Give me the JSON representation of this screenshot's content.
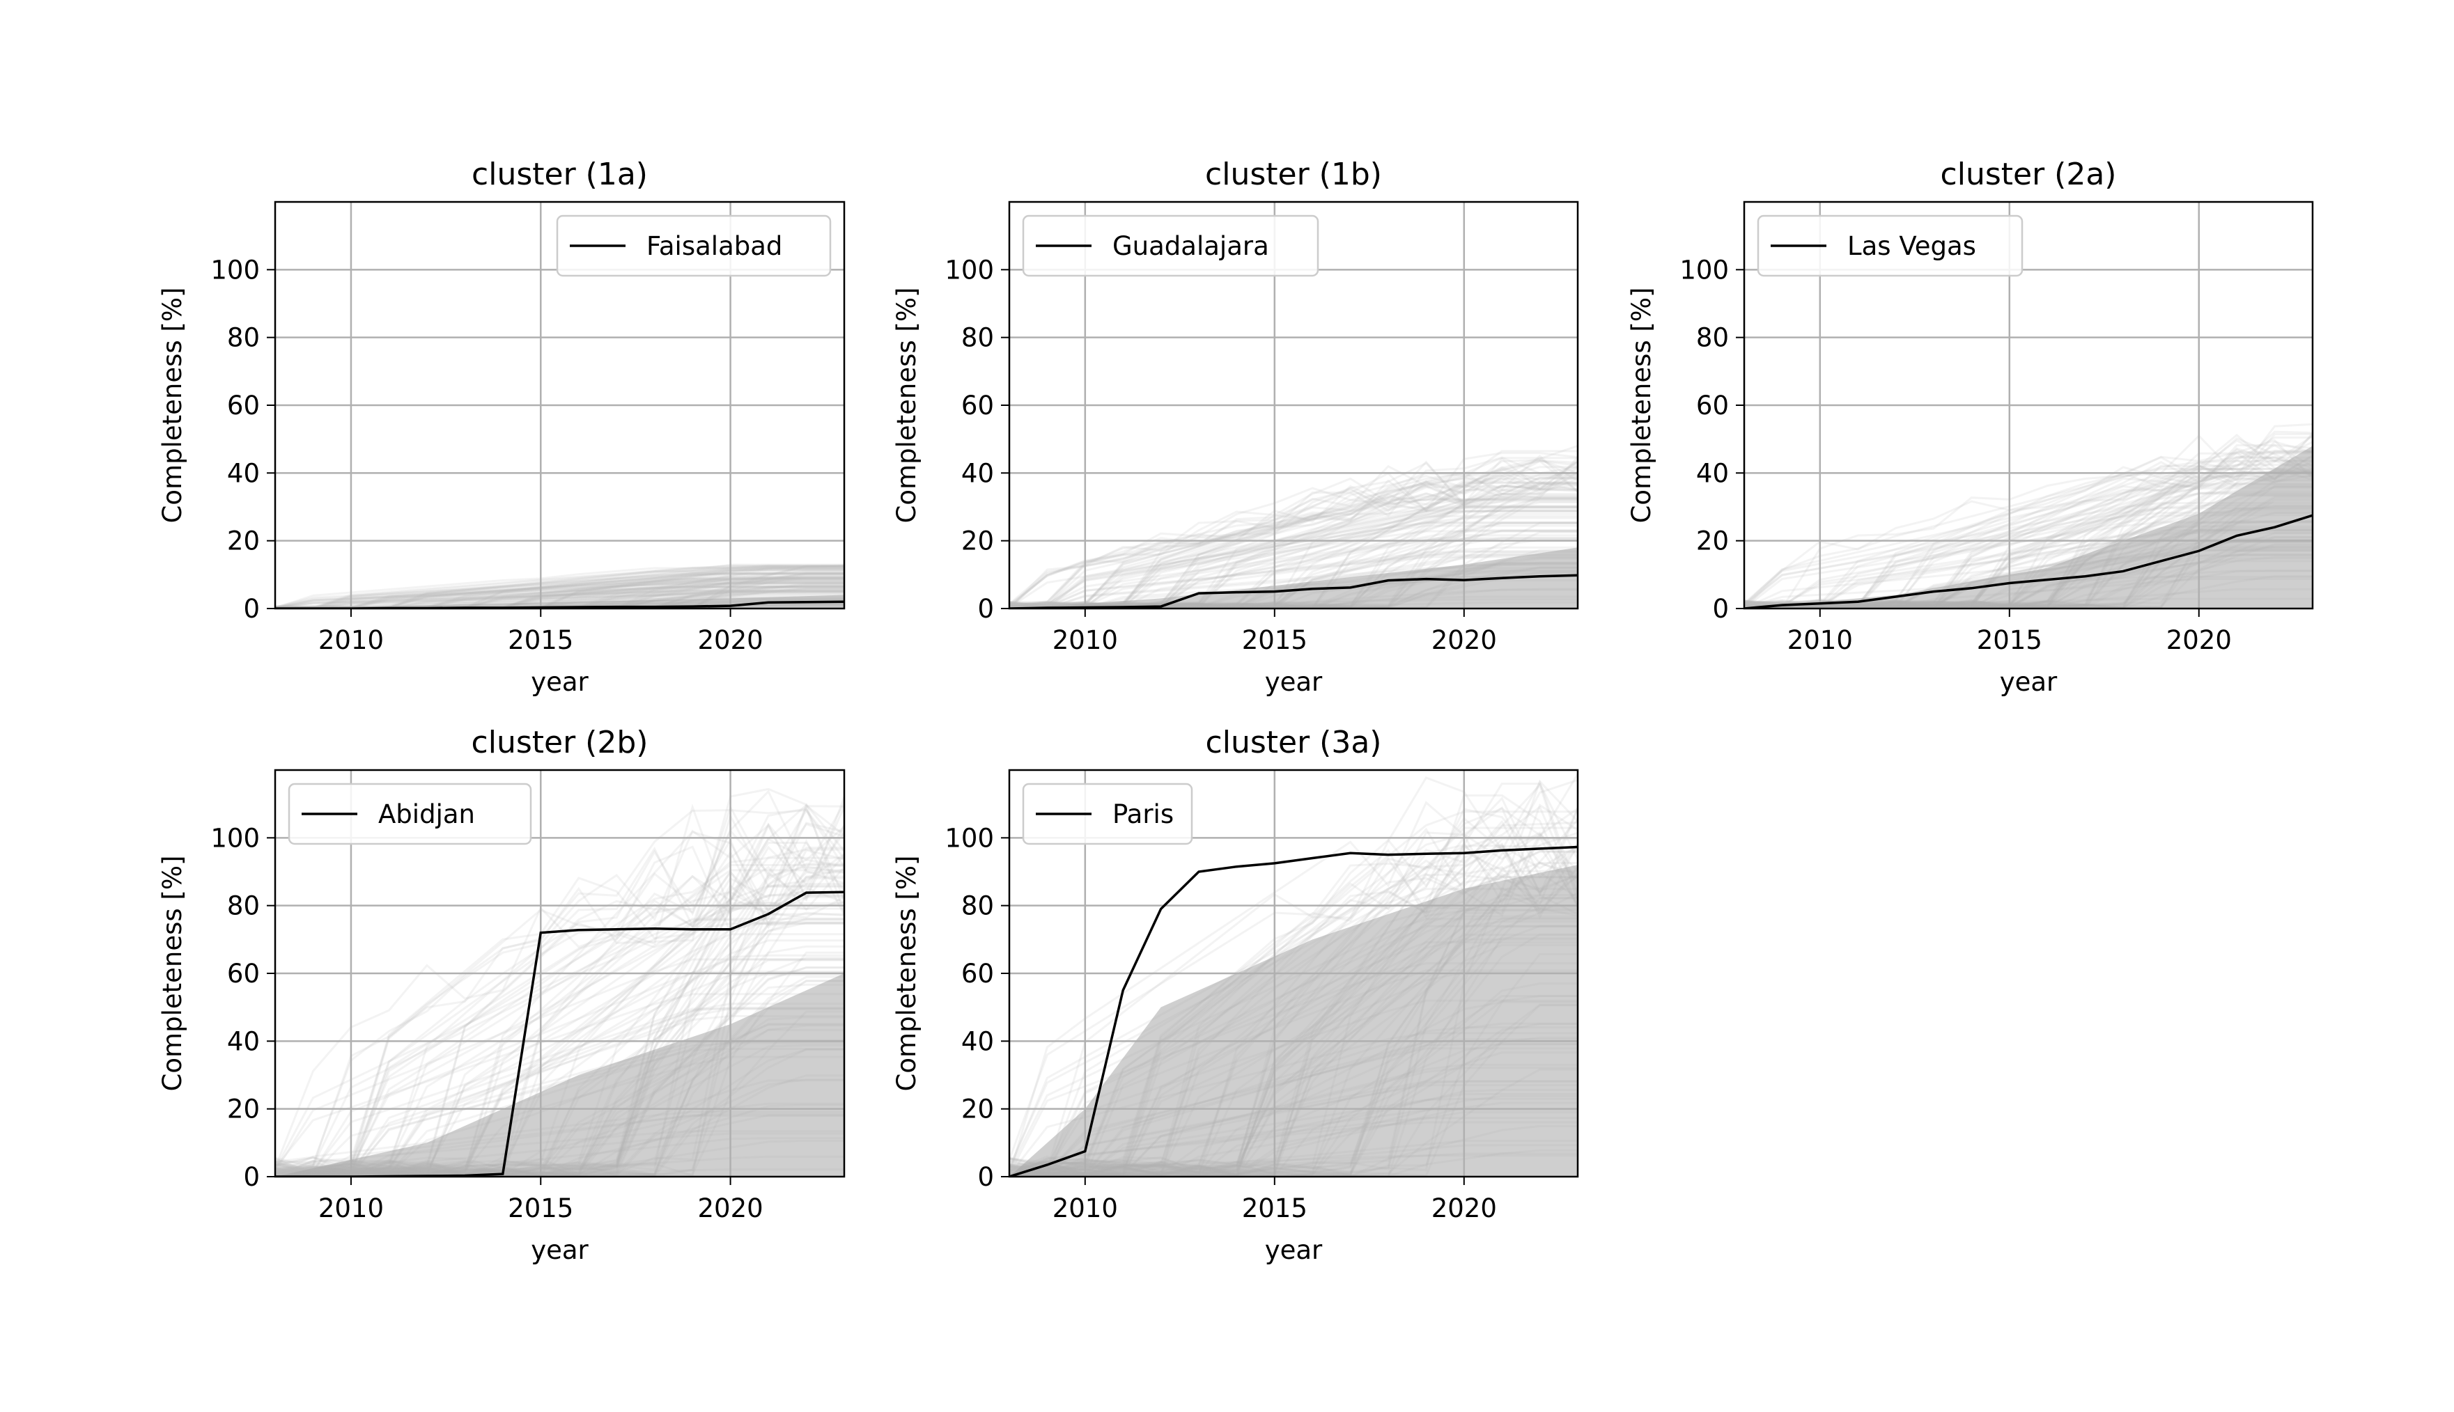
{
  "colors": {
    "highlight": "#000000",
    "background_lines": "#bdbdbd",
    "band_fill": "#a8a8a8",
    "grid": "#b0b0b0",
    "axes": "#000000",
    "legend_frame": "#cccccc"
  },
  "chart_data": [
    {
      "type": "line",
      "title": "cluster (1a)",
      "xlabel": "year",
      "ylabel": "Completeness [%]",
      "xlim": [
        2008,
        2023
      ],
      "ylim": [
        0,
        120
      ],
      "xticks": [
        "2010",
        "2015",
        "2020"
      ],
      "yticks": [
        "0",
        "20",
        "40",
        "60",
        "80",
        "100"
      ],
      "grid": true,
      "legend_position": "upper right",
      "background_note": "many faint grey lines (other cities in cluster)",
      "background_envelope": {
        "x": [
          2008,
          2012,
          2016,
          2020,
          2023
        ],
        "upper": [
          1,
          3,
          7,
          10,
          13
        ],
        "band": [
          0,
          1,
          2,
          3,
          4
        ]
      },
      "series": [
        {
          "name": "Faisalabad",
          "x": [
            2008,
            2009,
            2010,
            2011,
            2012,
            2013,
            2014,
            2015,
            2016,
            2017,
            2018,
            2019,
            2020,
            2021,
            2022,
            2023
          ],
          "y": [
            0,
            0,
            0,
            0.1,
            0.1,
            0.2,
            0.2,
            0.3,
            0.4,
            0.5,
            0.5,
            0.6,
            0.8,
            1.8,
            1.9,
            2.0
          ]
        }
      ]
    },
    {
      "type": "line",
      "title": "cluster (1b)",
      "xlabel": "year",
      "ylabel": "Completeness [%]",
      "xlim": [
        2008,
        2023
      ],
      "ylim": [
        0,
        120
      ],
      "xticks": [
        "2010",
        "2015",
        "2020"
      ],
      "yticks": [
        "0",
        "20",
        "40",
        "60",
        "80",
        "100"
      ],
      "grid": true,
      "legend_position": "upper left",
      "background_note": "many faint grey lines (other cities in cluster)",
      "background_envelope": {
        "x": [
          2008,
          2012,
          2016,
          2020,
          2023
        ],
        "upper": [
          3,
          18,
          32,
          42,
          48
        ],
        "band": [
          0,
          3,
          8,
          13,
          18
        ]
      },
      "series": [
        {
          "name": "Guadalajara",
          "x": [
            2008,
            2009,
            2010,
            2011,
            2012,
            2013,
            2014,
            2015,
            2016,
            2017,
            2018,
            2019,
            2020,
            2021,
            2022,
            2023
          ],
          "y": [
            0,
            0.2,
            0.3,
            0.4,
            0.6,
            4.5,
            4.8,
            5.0,
            5.8,
            6.2,
            8.3,
            8.7,
            8.4,
            9.0,
            9.5,
            9.8
          ]
        }
      ]
    },
    {
      "type": "line",
      "title": "cluster (2a)",
      "xlabel": "year",
      "ylabel": "Completeness [%]",
      "xlim": [
        2008,
        2023
      ],
      "ylim": [
        0,
        120
      ],
      "xticks": [
        "2010",
        "2015",
        "2020"
      ],
      "yticks": [
        "0",
        "20",
        "40",
        "60",
        "80",
        "100"
      ],
      "grid": true,
      "legend_position": "upper left",
      "background_note": "many faint grey lines (other cities in cluster)",
      "background_envelope": {
        "x": [
          2008,
          2012,
          2016,
          2020,
          2023
        ],
        "upper": [
          5,
          25,
          40,
          50,
          55
        ],
        "band": [
          0,
          4,
          12,
          28,
          48
        ]
      },
      "series": [
        {
          "name": "Las Vegas",
          "x": [
            2008,
            2009,
            2010,
            2011,
            2012,
            2013,
            2014,
            2015,
            2016,
            2017,
            2018,
            2019,
            2020,
            2021,
            2022,
            2023
          ],
          "y": [
            0,
            1,
            1.5,
            2,
            3.5,
            5,
            6,
            7.5,
            8.5,
            9.5,
            11,
            14,
            17,
            21.5,
            24,
            27.5
          ]
        }
      ]
    },
    {
      "type": "line",
      "title": "cluster (2b)",
      "xlabel": "year",
      "ylabel": "Completeness [%]",
      "xlim": [
        2008,
        2023
      ],
      "ylim": [
        0,
        120
      ],
      "xticks": [
        "2010",
        "2015",
        "2020"
      ],
      "yticks": [
        "0",
        "20",
        "40",
        "60",
        "80",
        "100"
      ],
      "grid": true,
      "legend_position": "upper left",
      "background_note": "many faint grey lines (other cities in cluster)",
      "background_envelope": {
        "x": [
          2008,
          2012,
          2016,
          2020,
          2023
        ],
        "upper": [
          20,
          70,
          95,
          110,
          120
        ],
        "band": [
          0,
          10,
          30,
          45,
          60
        ]
      },
      "series": [
        {
          "name": "Abidjan",
          "x": [
            2008,
            2009,
            2010,
            2011,
            2012,
            2013,
            2014,
            2015,
            2016,
            2017,
            2018,
            2019,
            2020,
            2021,
            2022,
            2023
          ],
          "y": [
            0,
            0,
            0,
            0.1,
            0.2,
            0.3,
            0.8,
            72,
            72.8,
            73,
            73.2,
            73,
            73,
            77.5,
            83.8,
            84
          ]
        }
      ]
    },
    {
      "type": "line",
      "title": "cluster (3a)",
      "xlabel": "year",
      "ylabel": "Completeness [%]",
      "xlim": [
        2008,
        2023
      ],
      "ylim": [
        0,
        120
      ],
      "xticks": [
        "2010",
        "2015",
        "2020"
      ],
      "yticks": [
        "0",
        "20",
        "40",
        "60",
        "80",
        "100"
      ],
      "grid": true,
      "legend_position": "upper left",
      "background_note": "many faint grey lines (other cities in cluster)",
      "background_envelope": {
        "x": [
          2008,
          2010,
          2012,
          2016,
          2020,
          2023
        ],
        "upper": [
          20,
          85,
          105,
          115,
          118,
          120
        ],
        "band": [
          0,
          20,
          50,
          70,
          85,
          92
        ]
      },
      "series": [
        {
          "name": "Paris",
          "x": [
            2008,
            2009,
            2010,
            2011,
            2012,
            2013,
            2014,
            2015,
            2016,
            2017,
            2018,
            2019,
            2020,
            2021,
            2022,
            2023
          ],
          "y": [
            0,
            3.5,
            7.5,
            55,
            79,
            90,
            91.5,
            92.5,
            94,
            95.5,
            95,
            95.3,
            95.5,
            96.3,
            96.8,
            97.3
          ]
        }
      ]
    }
  ]
}
